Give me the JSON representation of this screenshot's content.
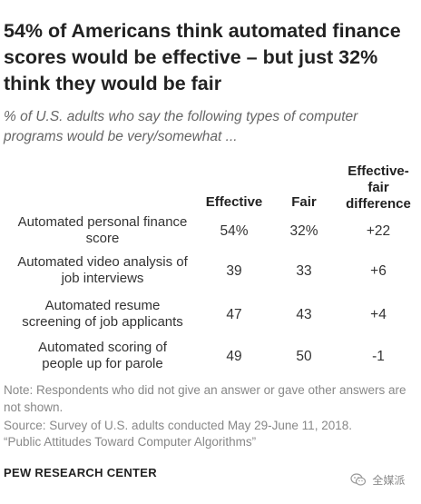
{
  "title": "54% of Americans think automated finance scores would be effective – but just 32% think they would be fair",
  "subtitle": "% of U.S. adults who say the following types of computer programs would be very/somewhat ...",
  "chart_data": {
    "type": "table",
    "columns": [
      "Effective",
      "Fair",
      "Effective-fair difference"
    ],
    "rows": [
      {
        "label": "Automated personal finance score",
        "effective": "54%",
        "fair": "32%",
        "difference": "+22"
      },
      {
        "label": "Automated video analysis of job interviews",
        "effective": "39",
        "fair": "33",
        "difference": "+6"
      },
      {
        "label": "Automated resume screening of job applicants",
        "effective": "47",
        "fair": "43",
        "difference": "+4"
      },
      {
        "label": "Automated scoring of people up for parole",
        "effective": "49",
        "fair": "50",
        "difference": "-1"
      }
    ]
  },
  "header": {
    "effective": "Effective",
    "fair": "Fair",
    "difference_line1": "Effective-",
    "difference_line2": "fair",
    "difference_line3": "difference"
  },
  "row_labels": [
    [
      "Automated personal finance",
      "score"
    ],
    [
      "Automated video analysis of",
      "job interviews"
    ],
    [
      "Automated resume",
      "screening of job applicants"
    ],
    [
      "Automated scoring of",
      "people up for parole"
    ]
  ],
  "note": "Note: Respondents who did not give an answer or gave other answers are not shown.",
  "source_line1": "Source: Survey of U.S. adults conducted May 29-June 11, 2018.",
  "source_line2": "“Public Attitudes Toward Computer Algorithms”",
  "brand": "PEW RESEARCH CENTER",
  "watermark": "全媒派",
  "watermark_icon": "wechat-icon"
}
